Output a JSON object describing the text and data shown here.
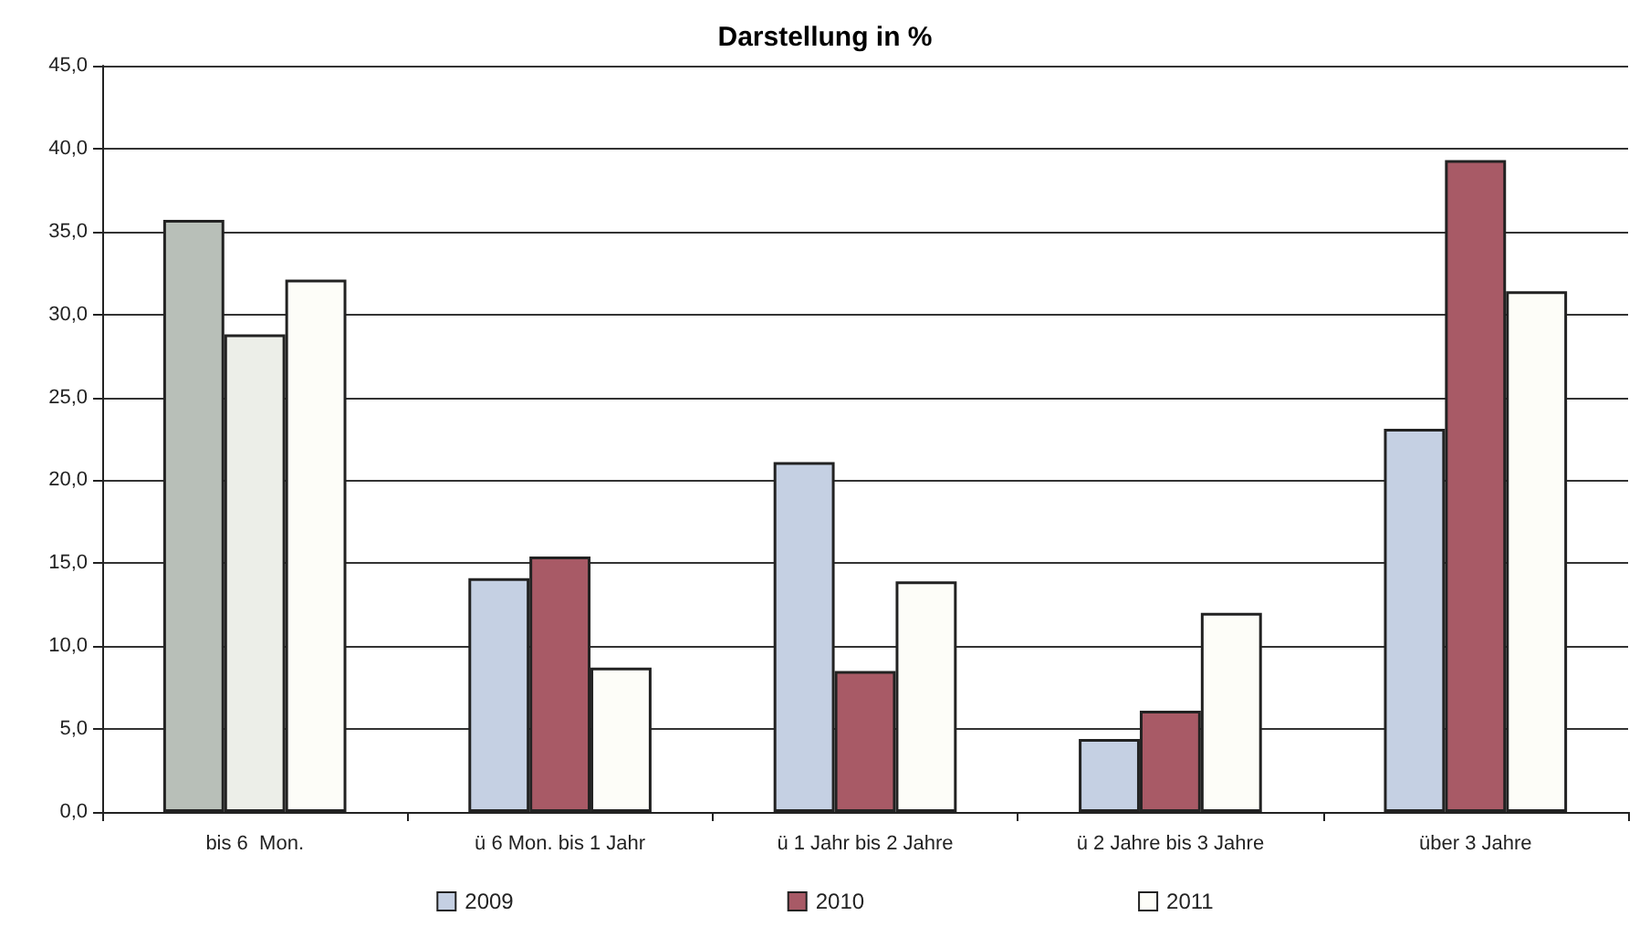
{
  "chart_data": {
    "type": "bar",
    "title": "Darstellung in %",
    "categories": [
      "bis 6  Mon.",
      "ü 6 Mon. bis 1 Jahr",
      "ü 1 Jahr bis 2 Jahre",
      "ü 2 Jahre bis 3 Jahre",
      "über 3 Jahre"
    ],
    "series": [
      {
        "name": "2009",
        "color": "#c5d0e3",
        "colors": [
          "#b8bfb8",
          "#c5d0e3",
          "#c5d0e3",
          "#c5d0e3",
          "#c5d0e3"
        ],
        "values": [
          35.7,
          14.1,
          21.1,
          4.4,
          23.1
        ]
      },
      {
        "name": "2010",
        "color": "#a85a66",
        "colors": [
          "#eceee8",
          "#a85a66",
          "#a85a66",
          "#a85a66",
          "#a85a66"
        ],
        "values": [
          28.8,
          15.4,
          8.5,
          6.1,
          39.3
        ]
      },
      {
        "name": "2011",
        "color": "#fdfdf8",
        "values": [
          32.1,
          8.7,
          13.9,
          12.0,
          31.4
        ]
      }
    ],
    "ylim": [
      0,
      45
    ],
    "yticks": [
      {
        "value": 0,
        "label": "0,0"
      },
      {
        "value": 5,
        "label": "5,0"
      },
      {
        "value": 10,
        "label": "10,0"
      },
      {
        "value": 15,
        "label": "15,0"
      },
      {
        "value": 20,
        "label": "20,0"
      },
      {
        "value": 25,
        "label": "25,0"
      },
      {
        "value": 30,
        "label": "30,0"
      },
      {
        "value": 35,
        "label": "35,0"
      },
      {
        "value": 40,
        "label": "40,0"
      },
      {
        "value": 45,
        "label": "45,0"
      }
    ],
    "grid": "y",
    "legend": "bottom"
  }
}
